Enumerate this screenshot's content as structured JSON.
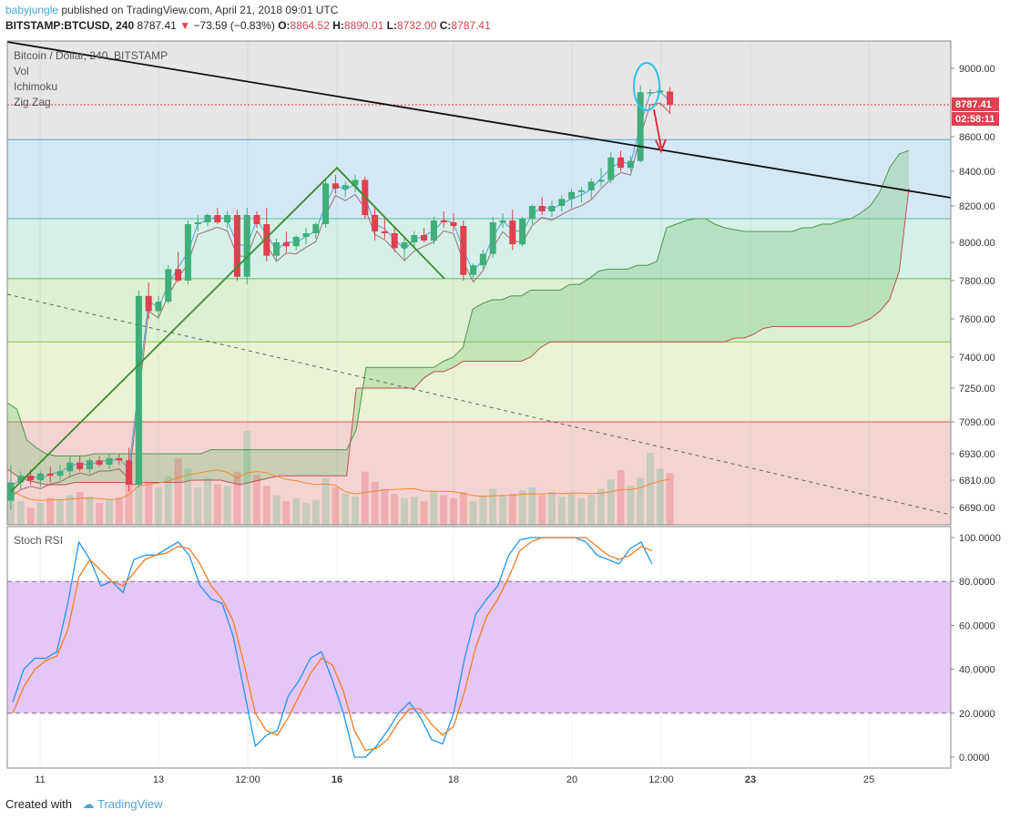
{
  "header": {
    "author": "babyjungle",
    "published": "published on TradingView.com, April 21, 2018 09:01 UTC"
  },
  "ticker": {
    "symbol": "BITSTAMP:BTCUSD, 240",
    "last": "8787.41",
    "change": "−73.59 (−0.83%)",
    "o_label": "O:",
    "o": "8864.52",
    "h_label": "H:",
    "h": "8890.01",
    "l_label": "L:",
    "l": "8732.00",
    "c_label": "C:",
    "c": "8787.41"
  },
  "legend": [
    "Bitcoin / Dollar, 240, BITSTAMP",
    "Vol",
    "Ichimoku",
    "Zig Zag"
  ],
  "price_tag": "8787.41",
  "countdown": "02:58:11",
  "stoch_title": "Stoch RSI",
  "footer": {
    "created": "Created with",
    "brand": "TradingView"
  },
  "colors": {
    "up": "#3fae7a",
    "down": "#e0404f",
    "k_line": "#2196f3",
    "d_line": "#f57c20",
    "rsi_band": "#e4c6f8"
  },
  "chart_data": [
    {
      "type": "candlestick",
      "title": "Bitcoin / Dollar, 240, BITSTAMP",
      "ylim": [
        6640,
        9150
      ],
      "y_ticks": [
        9000,
        8600,
        8400,
        8200,
        8000,
        7800,
        7600,
        7400,
        7250,
        7090,
        6930,
        6810,
        6690
      ],
      "y_tick_labels": [
        "9000.00",
        "8600.00",
        "8400.00",
        "8200.00",
        "8000.00",
        "7800.00",
        "7600.00",
        "7400.00",
        "7250.00",
        "7090.00",
        "6930.00",
        "6810.00",
        "6690.00"
      ],
      "x_ticks": [
        "11",
        "13",
        "12:00",
        "16",
        "18",
        "20",
        "12:00",
        "23",
        "25"
      ],
      "fib_levels": [
        8583,
        8130,
        7810,
        7480,
        7090
      ],
      "zone_colors": [
        "#e6e6e6",
        "#d4e8f4",
        "#d4f0e8",
        "#dcf0d4",
        "#eaf4d4",
        "#f4d4d2"
      ],
      "candles": [
        [
          6720,
          6880,
          6680,
          6800
        ],
        [
          6800,
          6850,
          6770,
          6830
        ],
        [
          6830,
          6860,
          6790,
          6810
        ],
        [
          6810,
          6850,
          6780,
          6840
        ],
        [
          6840,
          6870,
          6800,
          6830
        ],
        [
          6830,
          6880,
          6810,
          6850
        ],
        [
          6850,
          6920,
          6820,
          6890
        ],
        [
          6890,
          6920,
          6850,
          6860
        ],
        [
          6860,
          6910,
          6840,
          6900
        ],
        [
          6900,
          6920,
          6870,
          6880
        ],
        [
          6880,
          6930,
          6860,
          6910
        ],
        [
          6910,
          6930,
          6880,
          6900
        ],
        [
          6900,
          6960,
          6760,
          6790
        ],
        [
          6790,
          7750,
          6780,
          7720
        ],
        [
          7720,
          7790,
          7600,
          7640
        ],
        [
          7640,
          7720,
          7600,
          7690
        ],
        [
          7690,
          7880,
          7680,
          7860
        ],
        [
          7860,
          7950,
          7790,
          7800
        ],
        [
          7800,
          8120,
          7780,
          8100
        ],
        [
          8100,
          8150,
          8060,
          8110
        ],
        [
          8110,
          8160,
          8090,
          8150
        ],
        [
          8150,
          8190,
          8100,
          8110
        ],
        [
          8110,
          8170,
          8080,
          8150
        ],
        [
          8150,
          8180,
          7800,
          7820
        ],
        [
          7820,
          8190,
          7780,
          8150
        ],
        [
          8150,
          8170,
          8080,
          8100
        ],
        [
          8100,
          8190,
          7900,
          7930
        ],
        [
          7930,
          8020,
          7900,
          8000
        ],
        [
          8000,
          8060,
          7950,
          7980
        ],
        [
          7980,
          8040,
          7960,
          8030
        ],
        [
          8030,
          8080,
          7990,
          8050
        ],
        [
          8050,
          8110,
          8020,
          8100
        ],
        [
          8100,
          8350,
          8080,
          8330
        ],
        [
          8330,
          8380,
          8270,
          8300
        ],
        [
          8300,
          8340,
          8250,
          8320
        ],
        [
          8320,
          8380,
          8280,
          8350
        ],
        [
          8350,
          8370,
          8130,
          8150
        ],
        [
          8150,
          8200,
          8010,
          8060
        ],
        [
          8060,
          8130,
          8020,
          8050
        ],
        [
          8050,
          8090,
          7950,
          7970
        ],
        [
          7970,
          8030,
          7900,
          8000
        ],
        [
          8000,
          8060,
          7970,
          8040
        ],
        [
          8040,
          8080,
          8000,
          8010
        ],
        [
          8010,
          8140,
          7990,
          8120
        ],
        [
          8120,
          8170,
          8080,
          8110
        ],
        [
          8110,
          8160,
          8060,
          8090
        ],
        [
          8090,
          8120,
          7800,
          7830
        ],
        [
          7830,
          7890,
          7810,
          7880
        ],
        [
          7880,
          7960,
          7860,
          7940
        ],
        [
          7940,
          8140,
          7920,
          8110
        ],
        [
          8110,
          8160,
          8080,
          8120
        ],
        [
          8120,
          8180,
          7960,
          7990
        ],
        [
          7990,
          8140,
          7980,
          8130
        ],
        [
          8130,
          8210,
          8100,
          8200
        ],
        [
          8200,
          8250,
          8150,
          8170
        ],
        [
          8170,
          8230,
          8140,
          8200
        ],
        [
          8200,
          8260,
          8170,
          8240
        ],
        [
          8240,
          8300,
          8190,
          8280
        ],
        [
          8280,
          8310,
          8220,
          8290
        ],
        [
          8290,
          8360,
          8240,
          8340
        ],
        [
          8340,
          8420,
          8310,
          8350
        ],
        [
          8350,
          8510,
          8330,
          8480
        ],
        [
          8480,
          8520,
          8400,
          8420
        ],
        [
          8420,
          8490,
          8400,
          8460
        ],
        [
          8460,
          8900,
          8450,
          8860
        ],
        [
          8860,
          8880,
          8840,
          8860
        ],
        [
          8860,
          8890,
          8850,
          8870
        ],
        [
          8864,
          8890,
          8732,
          8787
        ]
      ],
      "volume": [
        45,
        30,
        22,
        28,
        35,
        32,
        38,
        42,
        36,
        28,
        33,
        35,
        80,
        140,
        55,
        48,
        62,
        85,
        72,
        48,
        60,
        52,
        50,
        68,
        120,
        64,
        50,
        38,
        30,
        34,
        28,
        32,
        60,
        48,
        40,
        36,
        68,
        55,
        46,
        40,
        34,
        36,
        30,
        44,
        38,
        34,
        42,
        30,
        36,
        46,
        38,
        40,
        44,
        48,
        38,
        42,
        36,
        40,
        34,
        38,
        46,
        58,
        70,
        50,
        60,
        92,
        72,
        66
      ],
      "annotations": [
        "trend-line",
        "zigzag",
        "ellipse",
        "arrow"
      ]
    },
    {
      "type": "line",
      "title": "Stoch RSI",
      "ylim": [
        -5,
        105
      ],
      "y_ticks": [
        100,
        80,
        60,
        40,
        20,
        0
      ],
      "y_tick_labels": [
        "100.0000",
        "80.0000",
        "60.0000",
        "40.0000",
        "20.0000",
        "0.0000"
      ],
      "band": [
        20,
        80
      ],
      "series": [
        {
          "values": [
            25,
            40,
            45,
            45,
            48,
            70,
            98,
            90,
            78,
            80,
            75,
            90,
            92,
            92,
            95,
            98,
            92,
            78,
            72,
            70,
            55,
            30,
            5,
            10,
            12,
            28,
            35,
            45,
            48,
            35,
            20,
            0,
            0,
            5,
            12,
            20,
            25,
            18,
            8,
            6,
            20,
            45,
            65,
            72,
            78,
            92,
            99,
            100,
            100,
            100,
            100,
            100,
            98,
            92,
            90,
            88,
            95,
            98,
            88
          ]
        },
        {
          "values": [
            20,
            32,
            40,
            44,
            46,
            58,
            82,
            90,
            85,
            80,
            78,
            84,
            90,
            92,
            93,
            96,
            95,
            88,
            78,
            72,
            62,
            42,
            20,
            12,
            10,
            18,
            28,
            38,
            45,
            42,
            30,
            12,
            3,
            4,
            8,
            16,
            22,
            22,
            15,
            10,
            14,
            30,
            50,
            64,
            72,
            82,
            94,
            98,
            100,
            100,
            100,
            100,
            100,
            96,
            92,
            90,
            92,
            96,
            94
          ]
        }
      ]
    }
  ]
}
